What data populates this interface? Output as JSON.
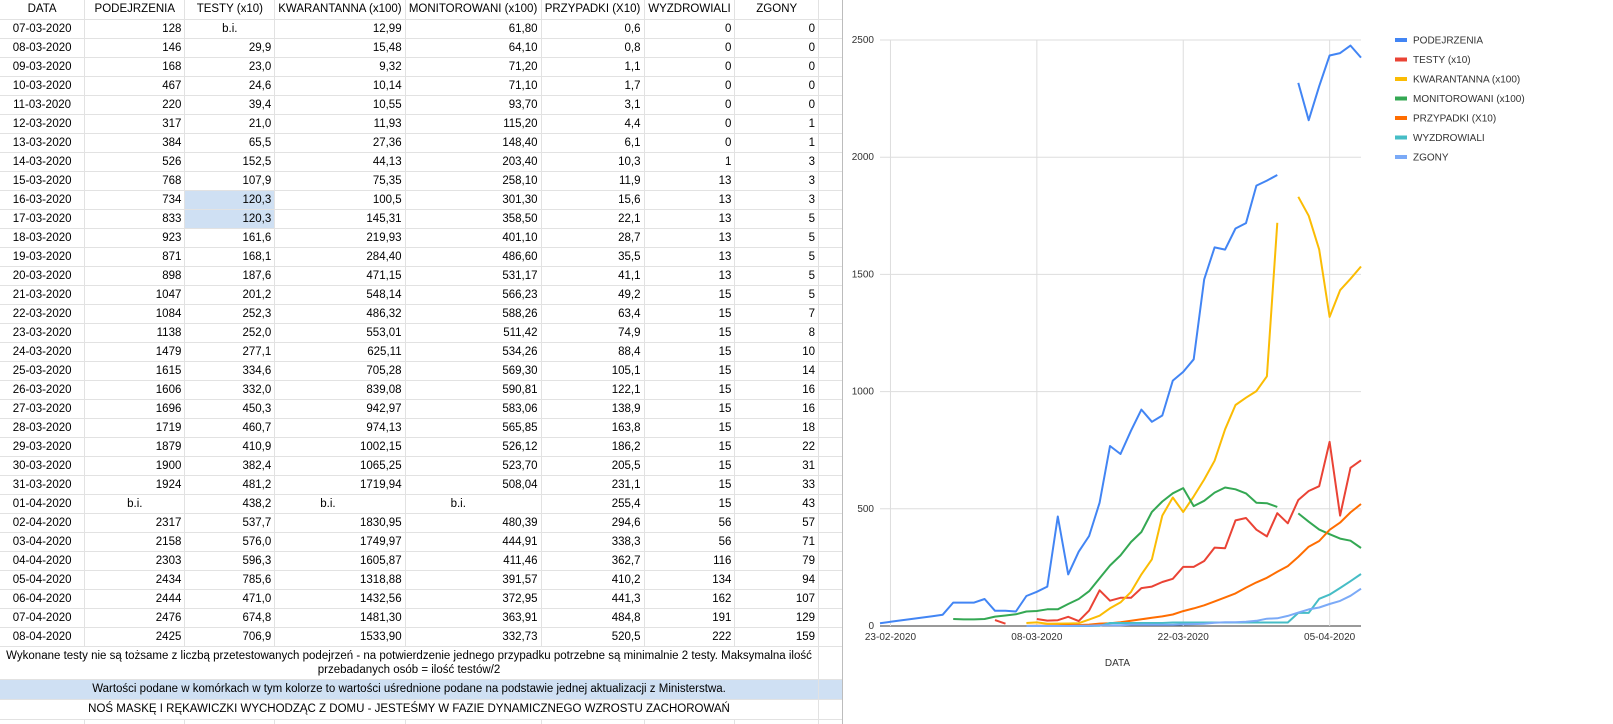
{
  "sheet": {
    "headers": [
      "DATA",
      "PODEJRZENIA",
      "TESTY (x10)",
      "KWARANTANNA (x100)",
      "MONITOROWANI (x100)",
      "PRZYPADKI (X10)",
      "WYZDROWIALI",
      "ZGONY"
    ],
    "rows": [
      [
        "07-03-2020",
        "128",
        "b.i.",
        "12,99",
        "61,80",
        "0,6",
        "0",
        "0"
      ],
      [
        "08-03-2020",
        "146",
        "29,9",
        "15,48",
        "64,10",
        "0,8",
        "0",
        "0"
      ],
      [
        "09-03-2020",
        "168",
        "23,0",
        "9,32",
        "71,20",
        "1,1",
        "0",
        "0"
      ],
      [
        "10-03-2020",
        "467",
        "24,6",
        "10,14",
        "71,10",
        "1,7",
        "0",
        "0"
      ],
      [
        "11-03-2020",
        "220",
        "39,4",
        "10,55",
        "93,70",
        "3,1",
        "0",
        "0"
      ],
      [
        "12-03-2020",
        "317",
        "21,0",
        "11,93",
        "115,20",
        "4,4",
        "0",
        "1"
      ],
      [
        "13-03-2020",
        "384",
        "65,5",
        "27,36",
        "148,40",
        "6,1",
        "0",
        "1"
      ],
      [
        "14-03-2020",
        "526",
        "152,5",
        "44,13",
        "203,40",
        "10,3",
        "1",
        "3"
      ],
      [
        "15-03-2020",
        "768",
        "107,9",
        "75,35",
        "258,10",
        "11,9",
        "13",
        "3"
      ],
      [
        "16-03-2020",
        "734",
        "120,3",
        "100,5",
        "301,30",
        "15,6",
        "13",
        "3"
      ],
      [
        "17-03-2020",
        "833",
        "120,3",
        "145,31",
        "358,50",
        "22,1",
        "13",
        "5"
      ],
      [
        "18-03-2020",
        "923",
        "161,6",
        "219,93",
        "401,10",
        "28,7",
        "13",
        "5"
      ],
      [
        "19-03-2020",
        "871",
        "168,1",
        "284,40",
        "486,60",
        "35,5",
        "13",
        "5"
      ],
      [
        "20-03-2020",
        "898",
        "187,6",
        "471,15",
        "531,17",
        "41,1",
        "13",
        "5"
      ],
      [
        "21-03-2020",
        "1047",
        "201,2",
        "548,14",
        "566,23",
        "49,2",
        "15",
        "5"
      ],
      [
        "22-03-2020",
        "1084",
        "252,3",
        "486,32",
        "588,26",
        "63,4",
        "15",
        "7"
      ],
      [
        "23-03-2020",
        "1138",
        "252,0",
        "553,01",
        "511,42",
        "74,9",
        "15",
        "8"
      ],
      [
        "24-03-2020",
        "1479",
        "277,1",
        "625,11",
        "534,26",
        "88,4",
        "15",
        "10"
      ],
      [
        "25-03-2020",
        "1615",
        "334,6",
        "705,28",
        "569,30",
        "105,1",
        "15",
        "14"
      ],
      [
        "26-03-2020",
        "1606",
        "332,0",
        "839,08",
        "590,81",
        "122,1",
        "15",
        "16"
      ],
      [
        "27-03-2020",
        "1696",
        "450,3",
        "942,97",
        "583,06",
        "138,9",
        "15",
        "16"
      ],
      [
        "28-03-2020",
        "1719",
        "460,7",
        "974,13",
        "565,85",
        "163,8",
        "15",
        "18"
      ],
      [
        "29-03-2020",
        "1879",
        "410,9",
        "1002,15",
        "526,12",
        "186,2",
        "15",
        "22"
      ],
      [
        "30-03-2020",
        "1900",
        "382,4",
        "1065,25",
        "523,70",
        "205,5",
        "15",
        "31"
      ],
      [
        "31-03-2020",
        "1924",
        "481,2",
        "1719,94",
        "508,04",
        "231,1",
        "15",
        "33"
      ],
      [
        "01-04-2020",
        "b.i.",
        "438,2",
        "b.i.",
        "b.i.",
        "255,4",
        "15",
        "43"
      ],
      [
        "02-04-2020",
        "2317",
        "537,7",
        "1830,95",
        "480,39",
        "294,6",
        "56",
        "57"
      ],
      [
        "03-04-2020",
        "2158",
        "576,0",
        "1749,97",
        "444,91",
        "338,3",
        "56",
        "71"
      ],
      [
        "04-04-2020",
        "2303",
        "596,3",
        "1605,87",
        "411,46",
        "362,7",
        "116",
        "79"
      ],
      [
        "05-04-2020",
        "2434",
        "785,6",
        "1318,88",
        "391,57",
        "410,2",
        "134",
        "94"
      ],
      [
        "06-04-2020",
        "2444",
        "471,0",
        "1432,56",
        "372,95",
        "441,3",
        "162",
        "107"
      ],
      [
        "07-04-2020",
        "2476",
        "674,8",
        "1481,30",
        "363,91",
        "484,8",
        "191",
        "129"
      ],
      [
        "08-04-2020",
        "2425",
        "706,9",
        "1533,90",
        "332,73",
        "520,5",
        "222",
        "159"
      ]
    ],
    "note": "Wykonane testy nie są tożsame z liczbą przetestowanych podejrzeń - na potwierdzenie jednego przypadku potrzebne są minimalnie 2 testy. Maksymalna ilość przebadanych osób = ilość testów/2",
    "averaged_note": "Wartości podane w komórkach w tym kolorze to wartości uśrednione podane na podstawie jednej aktualizacji z Ministerstwa.",
    "mask_note": "NOŚ MASKĘ I RĘKAWICZKI WYCHODZĄC Z DOMU - JESTEŚMY W FAZIE DYNAMICZNEGO WZROSTU ZACHOROWAŃ",
    "highlight_color": "#cfe0f3"
  },
  "chart_data": {
    "type": "line",
    "title": "",
    "xlabel": "DATA",
    "ylabel": "",
    "ylim": [
      0,
      2500
    ],
    "yticks": [
      "0",
      "500",
      "1000",
      "1500",
      "2000",
      "2500"
    ],
    "xticks": [
      "23-02-2020",
      "08-03-2020",
      "22-03-2020",
      "05-04-2020"
    ],
    "legend_position": "top-right",
    "grid": true,
    "x": [
      "2020-02-22",
      "2020-02-23",
      "2020-02-24",
      "2020-02-25",
      "2020-02-26",
      "2020-02-27",
      "2020-02-28",
      "2020-02-29",
      "2020-03-01",
      "2020-03-02",
      "2020-03-03",
      "2020-03-04",
      "2020-03-05",
      "2020-03-06",
      "2020-03-07",
      "2020-03-08",
      "2020-03-09",
      "2020-03-10",
      "2020-03-11",
      "2020-03-12",
      "2020-03-13",
      "2020-03-14",
      "2020-03-15",
      "2020-03-16",
      "2020-03-17",
      "2020-03-18",
      "2020-03-19",
      "2020-03-20",
      "2020-03-21",
      "2020-03-22",
      "2020-03-23",
      "2020-03-24",
      "2020-03-25",
      "2020-03-26",
      "2020-03-27",
      "2020-03-28",
      "2020-03-29",
      "2020-03-30",
      "2020-03-31",
      "2020-04-01",
      "2020-04-02",
      "2020-04-03",
      "2020-04-04",
      "2020-04-05",
      "2020-04-06",
      "2020-04-07",
      "2020-04-08"
    ],
    "series": [
      {
        "name": "PODEJRZENIA",
        "color": "#4285f4",
        "values": [
          12,
          18,
          24,
          30,
          36,
          42,
          48,
          100,
          100,
          100,
          115,
          65,
          65,
          62,
          128,
          146,
          168,
          467,
          220,
          317,
          384,
          526,
          768,
          734,
          833,
          923,
          871,
          898,
          1047,
          1084,
          1138,
          1479,
          1615,
          1606,
          1696,
          1719,
          1879,
          1900,
          1924,
          null,
          2317,
          2158,
          2303,
          2434,
          2444,
          2476,
          2425
        ]
      },
      {
        "name": "TESTY (x10)",
        "color": "#ea4335",
        "values": [
          null,
          null,
          null,
          null,
          null,
          null,
          null,
          null,
          null,
          null,
          null,
          25,
          10,
          null,
          null,
          29.9,
          23.0,
          24.6,
          39.4,
          21.0,
          65.5,
          152.5,
          107.9,
          120.3,
          120.3,
          161.6,
          168.1,
          187.6,
          201.2,
          252.3,
          252.0,
          277.1,
          334.6,
          332.0,
          450.3,
          460.7,
          410.9,
          382.4,
          481.2,
          438.2,
          537.7,
          576.0,
          596.3,
          785.6,
          471.0,
          674.8,
          706.9
        ]
      },
      {
        "name": "KWARANTANNA (x100)",
        "color": "#fbbc04",
        "values": [
          null,
          null,
          null,
          null,
          null,
          null,
          null,
          null,
          null,
          null,
          null,
          null,
          null,
          null,
          12.99,
          15.48,
          9.32,
          10.14,
          10.55,
          11.93,
          27.36,
          44.13,
          75.35,
          100.5,
          145.31,
          219.93,
          284.4,
          471.15,
          548.14,
          486.32,
          553.01,
          625.11,
          705.28,
          839.08,
          942.97,
          974.13,
          1002.15,
          1065.25,
          1719.94,
          null,
          1830.95,
          1749.97,
          1605.87,
          1318.88,
          1432.56,
          1481.3,
          1533.9
        ]
      },
      {
        "name": "MONITOROWANI (x100)",
        "color": "#34a853",
        "values": [
          null,
          null,
          null,
          null,
          null,
          null,
          null,
          30,
          28,
          28,
          30,
          40,
          45,
          50,
          61.8,
          64.1,
          71.2,
          71.1,
          93.7,
          115.2,
          148.4,
          203.4,
          258.1,
          301.3,
          358.5,
          401.1,
          486.6,
          531.17,
          566.23,
          588.26,
          511.42,
          534.26,
          569.3,
          590.81,
          583.06,
          565.85,
          526.12,
          523.7,
          508.04,
          null,
          480.39,
          444.91,
          411.46,
          391.57,
          372.95,
          363.91,
          332.73
        ]
      },
      {
        "name": "PRZYPADKI (X10)",
        "color": "#ff6d01",
        "values": [
          null,
          null,
          null,
          null,
          null,
          null,
          null,
          null,
          null,
          null,
          null,
          null,
          null,
          null,
          0.6,
          0.8,
          1.1,
          1.7,
          3.1,
          4.4,
          6.1,
          10.3,
          11.9,
          15.6,
          22.1,
          28.7,
          35.5,
          41.1,
          49.2,
          63.4,
          74.9,
          88.4,
          105.1,
          122.1,
          138.9,
          163.8,
          186.2,
          205.5,
          231.1,
          255.4,
          294.6,
          338.3,
          362.7,
          410.2,
          441.3,
          484.8,
          520.5
        ]
      },
      {
        "name": "WYZDROWIALI",
        "color": "#46bdc6",
        "values": [
          null,
          null,
          null,
          null,
          null,
          null,
          null,
          null,
          null,
          null,
          null,
          null,
          null,
          null,
          0,
          0,
          0,
          0,
          0,
          0,
          0,
          1,
          13,
          13,
          13,
          13,
          13,
          13,
          15,
          15,
          15,
          15,
          15,
          15,
          15,
          15,
          15,
          15,
          15,
          15,
          56,
          56,
          116,
          134,
          162,
          191,
          222
        ]
      },
      {
        "name": "ZGONY",
        "color": "#7baaf7",
        "values": [
          null,
          null,
          null,
          null,
          null,
          null,
          null,
          null,
          null,
          null,
          null,
          null,
          null,
          null,
          0,
          0,
          0,
          0,
          0,
          1,
          1,
          3,
          3,
          3,
          5,
          5,
          5,
          5,
          5,
          7,
          8,
          10,
          14,
          16,
          16,
          18,
          22,
          31,
          33,
          43,
          57,
          71,
          79,
          94,
          107,
          129,
          159
        ]
      }
    ]
  }
}
